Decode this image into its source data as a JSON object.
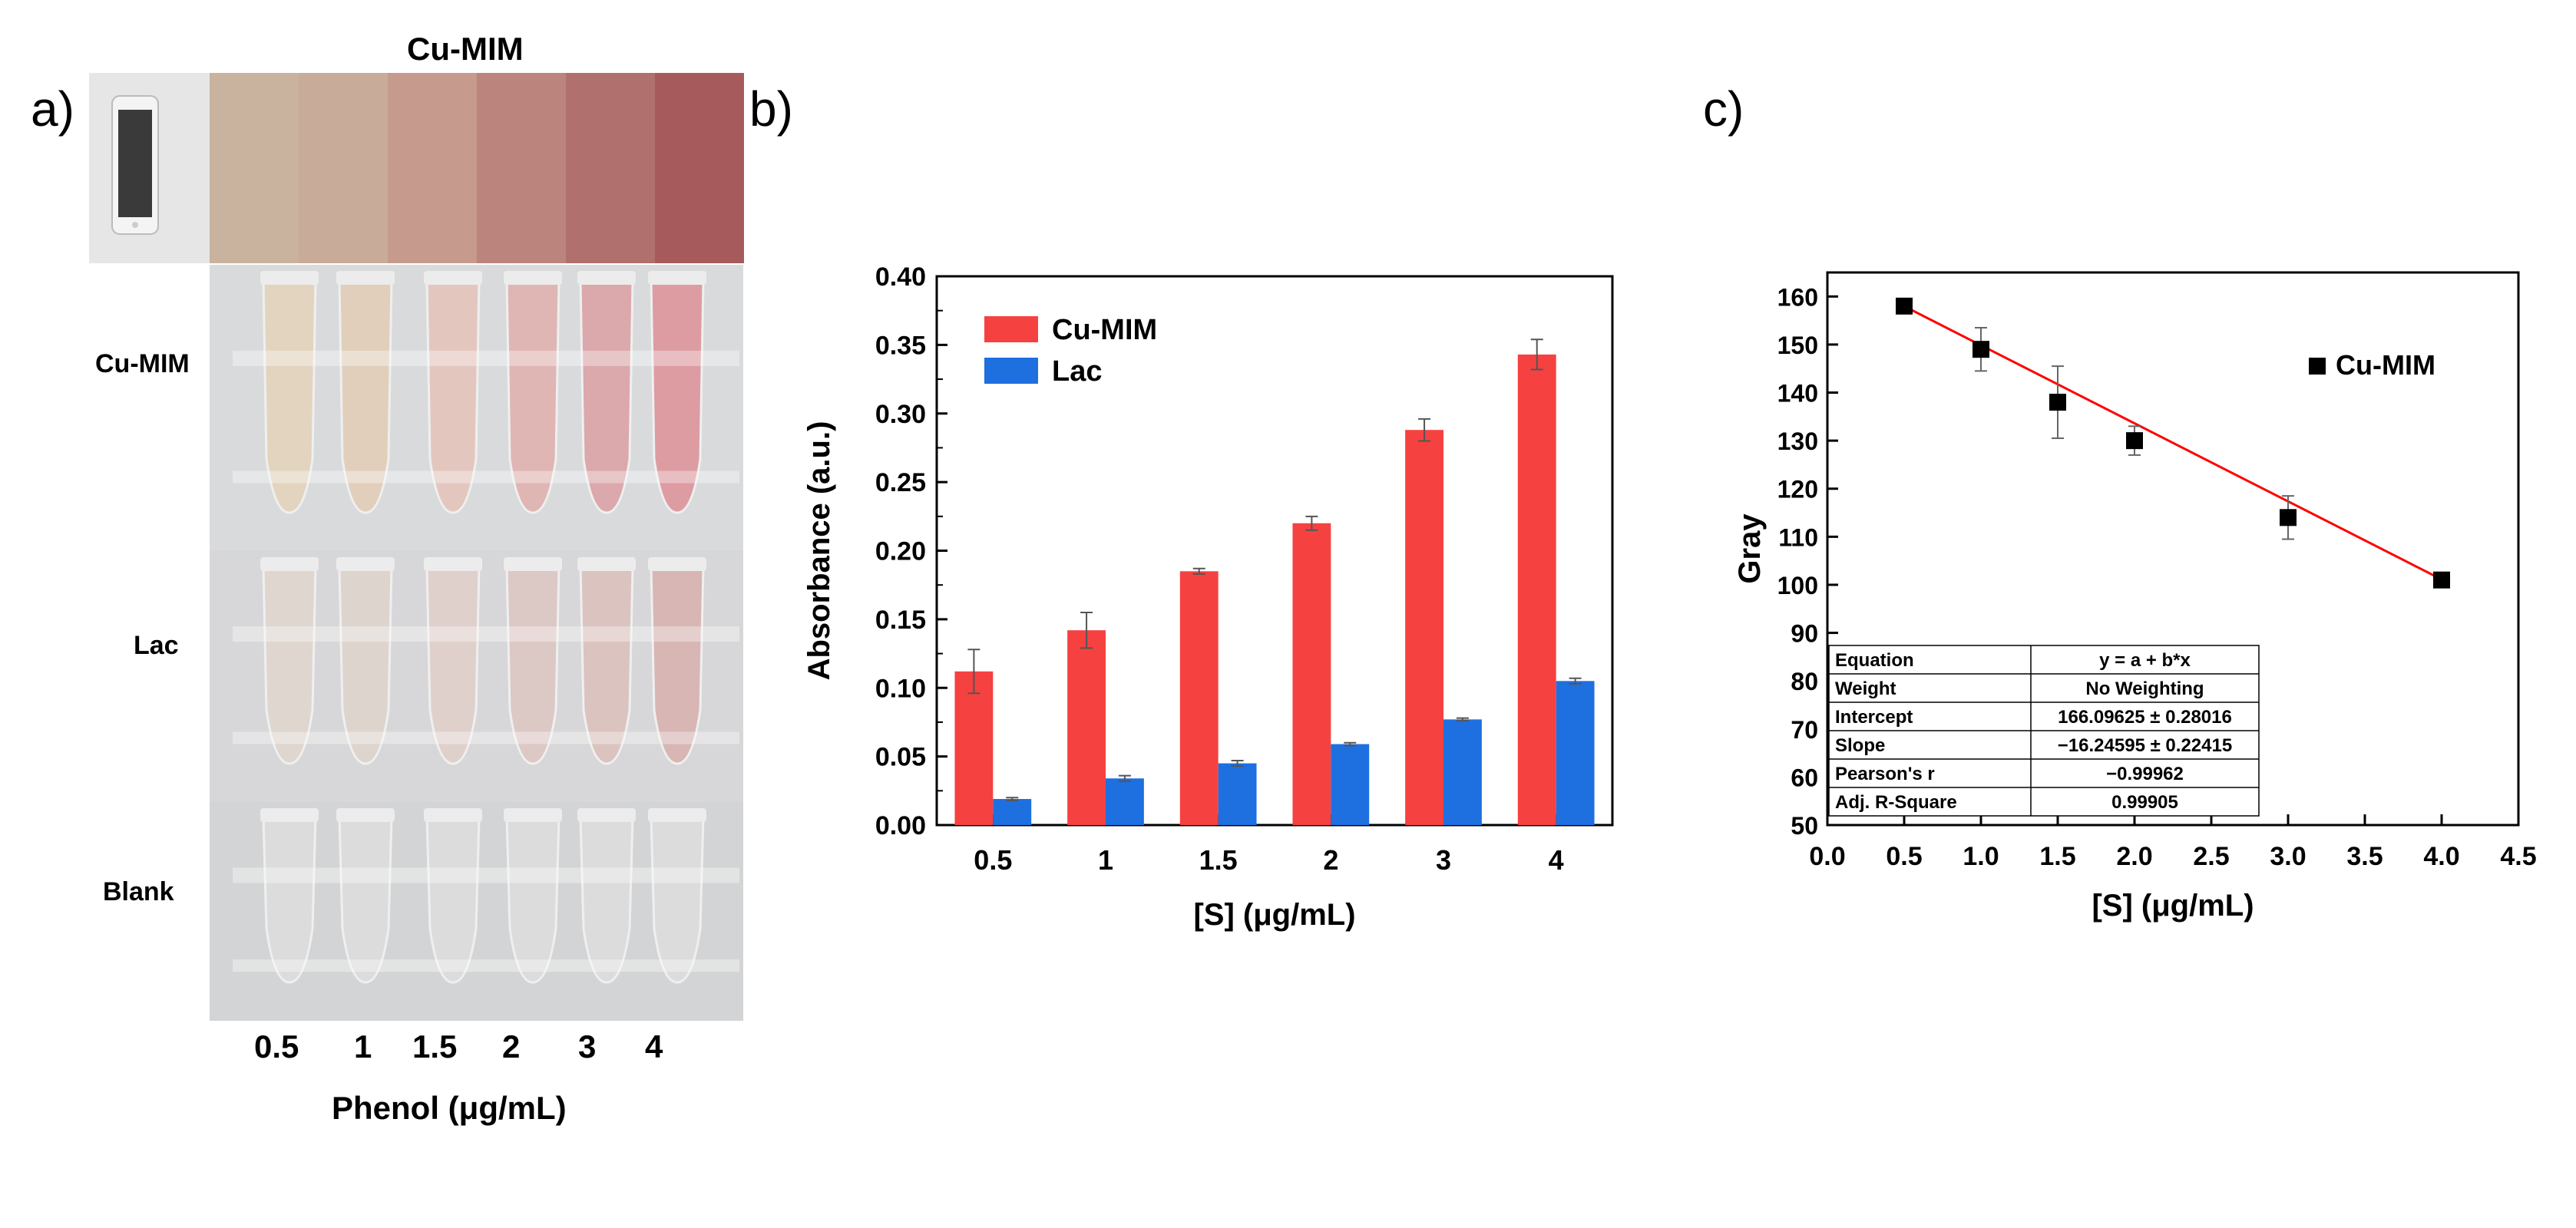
{
  "panel_a": {
    "letter": "a)",
    "title": "Cu-MIM",
    "swatch_colors": [
      "#c9b29e",
      "#c9ab9a",
      "#c69a8d",
      "#bb857d",
      "#b0706d",
      "#a75a5b"
    ],
    "rows": [
      {
        "label": "Cu-MIM",
        "tube_colors": [
          "#e2d4bf",
          "#e1cfbc",
          "#e3c7bf",
          "#dfb6b3",
          "#dba8ab",
          "#dd9ca2"
        ]
      },
      {
        "label": "Lac",
        "tube_colors": [
          "#ded6cf",
          "#ddd4ce",
          "#dfd0cc",
          "#dcc8c5",
          "#dbc3c0",
          "#d8b6b4"
        ]
      },
      {
        "label": "Blank",
        "tube_colors": [
          "#dcdcdc",
          "#dcdcdc",
          "#dcdcdc",
          "#dcdcdc",
          "#dcdcdc",
          "#dcdcdc"
        ]
      }
    ],
    "concentrations": [
      "0.5",
      "1",
      "1.5",
      "2",
      "3",
      "4"
    ],
    "xlabel": "Phenol (μg/mL)"
  },
  "chart_data": [
    {
      "panel": "b)",
      "type": "bar",
      "categories": [
        "0.5",
        "1",
        "1.5",
        "2",
        "3",
        "4"
      ],
      "series": [
        {
          "name": "Cu-MIM",
          "color": "#f64141",
          "values": [
            0.112,
            0.142,
            0.185,
            0.22,
            0.288,
            0.343
          ],
          "errors": [
            0.016,
            0.013,
            0.002,
            0.005,
            0.008,
            0.011
          ]
        },
        {
          "name": "Lac",
          "color": "#1e6fe0",
          "values": [
            0.019,
            0.034,
            0.045,
            0.059,
            0.077,
            0.105
          ],
          "errors": [
            0.001,
            0.002,
            0.002,
            0.001,
            0.001,
            0.002
          ]
        }
      ],
      "xlabel": "[S] (μg/mL)",
      "ylabel": "Absorbance (a.u.)",
      "ylim": [
        0,
        0.4
      ],
      "yticks": [
        "0.00",
        "0.05",
        "0.10",
        "0.15",
        "0.20",
        "0.25",
        "0.30",
        "0.35",
        "0.40"
      ],
      "legend_position": "top-left"
    },
    {
      "panel": "c)",
      "type": "scatter",
      "series": [
        {
          "name": "Cu-MIM",
          "color": "#000000",
          "x": [
            0.5,
            1.0,
            1.5,
            2.0,
            3.0,
            4.0
          ],
          "y": [
            158,
            149,
            138,
            130,
            114,
            101
          ],
          "errors": [
            1,
            4.5,
            7.5,
            3,
            4.5,
            1
          ]
        }
      ],
      "fit": {
        "color": "#ff0000",
        "intercept": 166.09625,
        "slope": -16.24595,
        "x_range": [
          0.5,
          4.0
        ]
      },
      "xlabel": "[S] (μg/mL)",
      "ylabel": "Gray",
      "xlim": [
        0.0,
        4.5
      ],
      "ylim": [
        50,
        165
      ],
      "xticks": [
        "0.0",
        "0.5",
        "1.0",
        "1.5",
        "2.0",
        "2.5",
        "3.0",
        "3.5",
        "4.0",
        "4.5"
      ],
      "yticks": [
        "50",
        "60",
        "70",
        "80",
        "90",
        "100",
        "110",
        "120",
        "130",
        "140",
        "150",
        "160"
      ],
      "legend_position": "top-right",
      "fit_table": [
        [
          "Equation",
          "y = a + b*x"
        ],
        [
          "Weight",
          "No Weighting"
        ],
        [
          "Intercept",
          "166.09625 ± 0.28016"
        ],
        [
          "Slope",
          "−16.24595 ± 0.22415"
        ],
        [
          "Pearson's r",
          "−0.99962"
        ],
        [
          "Adj. R-Square",
          "0.99905"
        ]
      ]
    }
  ]
}
